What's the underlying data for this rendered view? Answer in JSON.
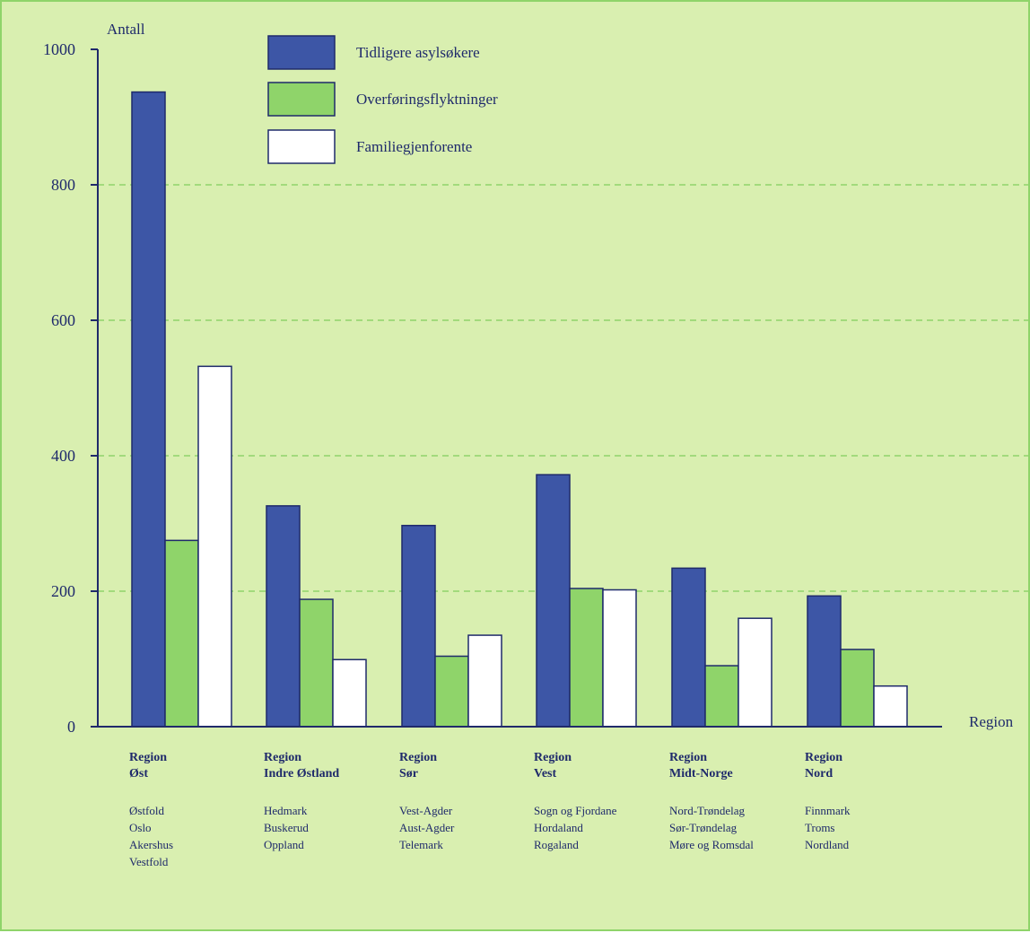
{
  "chart_data": {
    "type": "bar",
    "ylabel": "Antall",
    "xlabel": "Region",
    "ylim": [
      0,
      1000
    ],
    "yticks": [
      0,
      200,
      400,
      600,
      800,
      1000
    ],
    "grid": true,
    "legend_position": "top-left",
    "categories": [
      {
        "name_lines": [
          "Region",
          "Øst"
        ],
        "counties": [
          "Østfold",
          "Oslo",
          "Akershus",
          "Vestfold"
        ]
      },
      {
        "name_lines": [
          "Region",
          "Indre Østland"
        ],
        "counties": [
          "Hedmark",
          "Buskerud",
          "Oppland"
        ]
      },
      {
        "name_lines": [
          "Region",
          "Sør"
        ],
        "counties": [
          "Vest-Agder",
          "Aust-Agder",
          "Telemark"
        ]
      },
      {
        "name_lines": [
          "Region",
          "Vest"
        ],
        "counties": [
          "Sogn og Fjordane",
          "Hordaland",
          "Rogaland"
        ]
      },
      {
        "name_lines": [
          "Region",
          "Midt-Norge"
        ],
        "counties": [
          "Nord-Trøndelag",
          "Sør-Trøndelag",
          "Møre og Romsdal"
        ]
      },
      {
        "name_lines": [
          "Region",
          "Nord"
        ],
        "counties": [
          "Finnmark",
          "Troms",
          "Nordland"
        ]
      }
    ],
    "series": [
      {
        "name": "Tidligere asylsøkere",
        "color": "#3d56a6",
        "values": [
          937,
          326,
          297,
          372,
          234,
          193
        ]
      },
      {
        "name": "Overføringsflyktninger",
        "color": "#8fd46a",
        "values": [
          275,
          188,
          104,
          204,
          90,
          114
        ]
      },
      {
        "name": "Familiegjenforente",
        "color": "#ffffff",
        "values": [
          532,
          99,
          135,
          202,
          160,
          60
        ]
      }
    ]
  },
  "colors": {
    "background": "#d9efb0",
    "axis": "#1f2a6b",
    "grid": "#8fd46a"
  }
}
